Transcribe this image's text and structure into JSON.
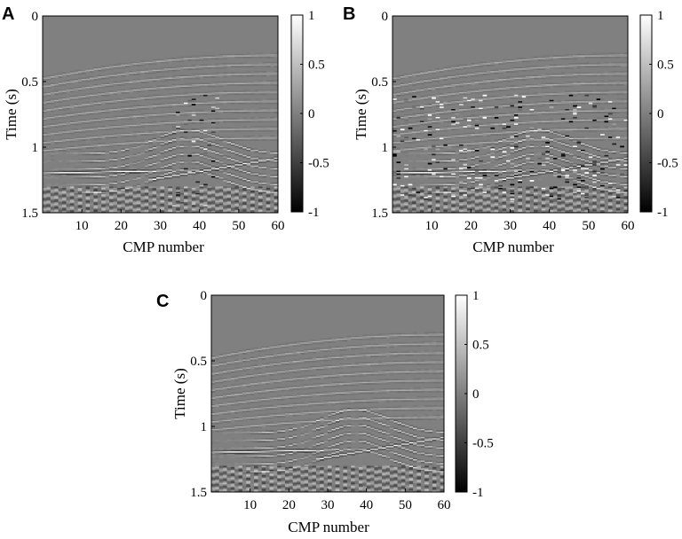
{
  "panels": [
    {
      "letter": "A",
      "xlabel": "CMP number",
      "ylabel": "Time (s)",
      "xticks": [
        "10",
        "20",
        "30",
        "40",
        "50",
        "60"
      ],
      "yticks": [
        "0",
        "0.5",
        "1",
        "1.5"
      ],
      "colorbar_ticks": [
        "1",
        "0.5",
        "0",
        "-0.5",
        "-1"
      ],
      "noise": "low"
    },
    {
      "letter": "B",
      "xlabel": "CMP number",
      "ylabel": "Time (s)",
      "xticks": [
        "10",
        "20",
        "30",
        "40",
        "50",
        "60"
      ],
      "yticks": [
        "0",
        "0.5",
        "1",
        "1.5"
      ],
      "colorbar_ticks": [
        "1",
        "0.5",
        "0",
        "-0.5",
        "-1"
      ],
      "noise": "high"
    },
    {
      "letter": "C",
      "xlabel": "CMP number",
      "ylabel": "Time (s)",
      "xticks": [
        "10",
        "20",
        "30",
        "40",
        "50",
        "60"
      ],
      "yticks": [
        "0",
        "0.5",
        "1",
        "1.5"
      ],
      "colorbar_ticks": [
        "1",
        "0.5",
        "0",
        "-0.5",
        "-1"
      ],
      "noise": "none"
    }
  ],
  "colormap": [
    "#000000",
    "#ffffff"
  ]
}
